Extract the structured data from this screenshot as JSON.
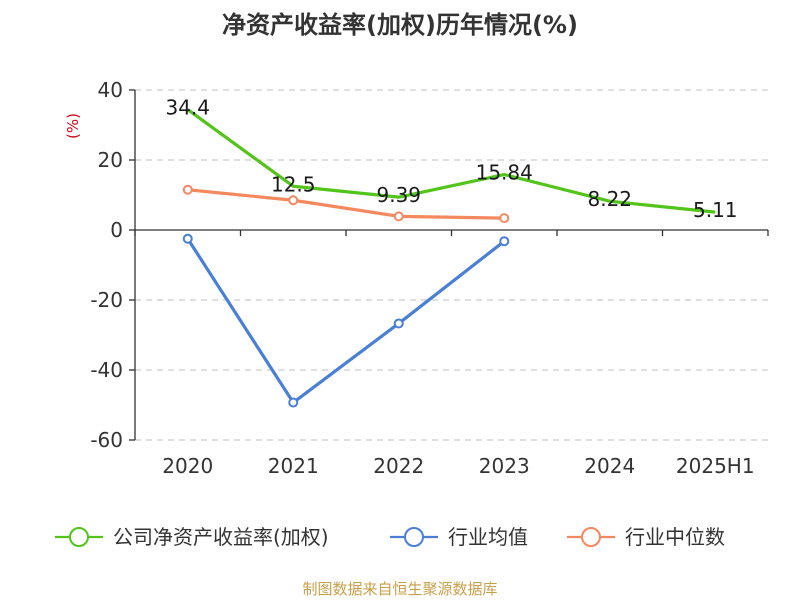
{
  "chart_data": {
    "type": "line",
    "title": "净资产收益率(加权)历年情况(%)",
    "ylabel": "(%)",
    "categories": [
      "2020",
      "2021",
      "2022",
      "2023",
      "2024",
      "2025H1"
    ],
    "ylim": [
      -60,
      40
    ],
    "yticks": [
      40,
      20,
      0,
      -20,
      -40,
      -60
    ],
    "grid": true,
    "legend_position": "bottom",
    "series": [
      {
        "name": "公司净资产收益率(加权)",
        "color": "#52c41a",
        "values": [
          34.4,
          12.5,
          9.39,
          15.84,
          8.22,
          5.11
        ],
        "labels": [
          "34.4",
          "12.5",
          "9.39",
          "15.84",
          "8.22",
          "5.11"
        ]
      },
      {
        "name": "行业均值",
        "color": "#4a7fd8",
        "values": [
          -2.5,
          -49.3,
          -26.7,
          -3.2,
          null,
          null
        ]
      },
      {
        "name": "行业中位数",
        "color": "#f4895f",
        "values": [
          11.5,
          8.5,
          3.9,
          3.4,
          null,
          null
        ]
      }
    ],
    "source": "制图数据来自恒生聚源数据库"
  }
}
